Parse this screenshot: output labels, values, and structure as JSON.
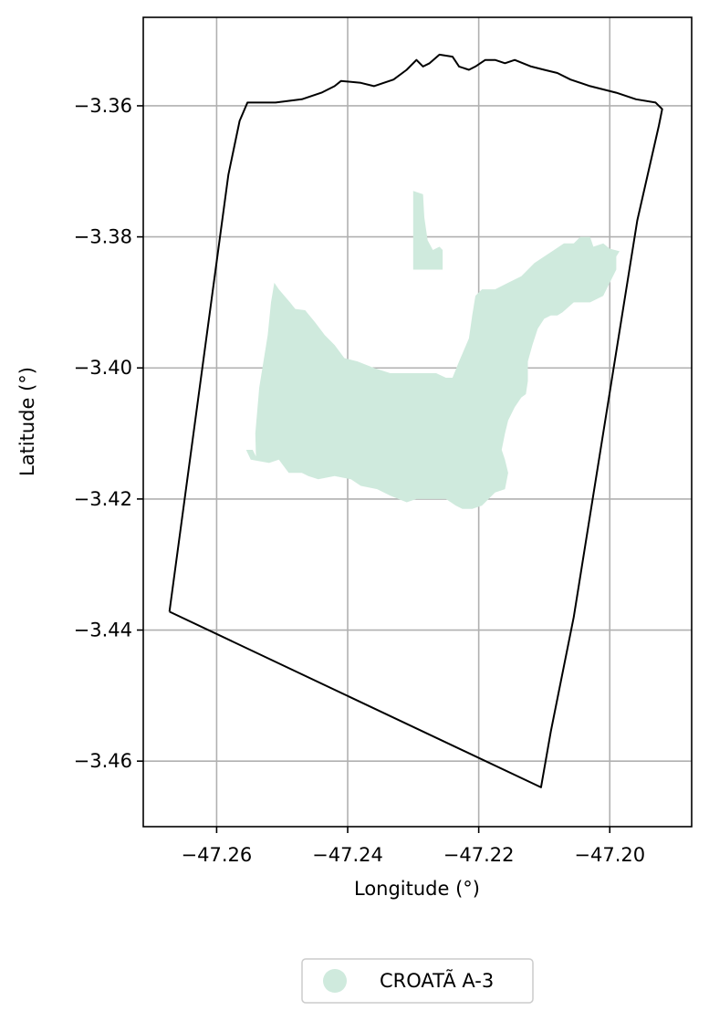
{
  "chart_data": {
    "type": "map",
    "xlabel": "Longitude (°)",
    "ylabel": "Latitude (°)",
    "xlim": [
      -47.2712,
      -47.1875
    ],
    "ylim": [
      -3.47,
      -3.3465
    ],
    "x_ticks": [
      {
        "value": -47.26,
        "label": "−47.26"
      },
      {
        "value": -47.24,
        "label": "−47.24"
      },
      {
        "value": -47.22,
        "label": "−47.22"
      },
      {
        "value": -47.2,
        "label": "−47.20"
      }
    ],
    "y_ticks": [
      {
        "value": -3.36,
        "label": "−3.36"
      },
      {
        "value": -3.38,
        "label": "−3.38"
      },
      {
        "value": -3.4,
        "label": "−3.40"
      },
      {
        "value": -3.42,
        "label": "−3.42"
      },
      {
        "value": -3.44,
        "label": "−3.44"
      },
      {
        "value": -3.46,
        "label": "−3.46"
      }
    ],
    "grid": true,
    "legend_position": "bottom-center",
    "boundary": {
      "color": "#000000",
      "coords": [
        [
          -47.2672,
          -3.4372
        ],
        [
          -47.2582,
          -3.3705
        ],
        [
          -47.2565,
          -3.3623
        ],
        [
          -47.2553,
          -3.3595
        ],
        [
          -47.251,
          -3.3595
        ],
        [
          -47.247,
          -3.359
        ],
        [
          -47.244,
          -3.358
        ],
        [
          -47.242,
          -3.357
        ],
        [
          -47.241,
          -3.3562
        ],
        [
          -47.238,
          -3.3565
        ],
        [
          -47.236,
          -3.357
        ],
        [
          -47.233,
          -3.356
        ],
        [
          -47.231,
          -3.3545
        ],
        [
          -47.2295,
          -3.353
        ],
        [
          -47.2285,
          -3.354
        ],
        [
          -47.2275,
          -3.3535
        ],
        [
          -47.226,
          -3.3522
        ],
        [
          -47.224,
          -3.3525
        ],
        [
          -47.223,
          -3.354
        ],
        [
          -47.2215,
          -3.3545
        ],
        [
          -47.2205,
          -3.354
        ],
        [
          -47.219,
          -3.353
        ],
        [
          -47.2175,
          -3.353
        ],
        [
          -47.216,
          -3.3535
        ],
        [
          -47.2145,
          -3.353
        ],
        [
          -47.212,
          -3.354
        ],
        [
          -47.21,
          -3.3545
        ],
        [
          -47.208,
          -3.355
        ],
        [
          -47.206,
          -3.356
        ],
        [
          -47.203,
          -3.357
        ],
        [
          -47.199,
          -3.358
        ],
        [
          -47.196,
          -3.359
        ],
        [
          -47.193,
          -3.3595
        ],
        [
          -47.192,
          -3.3605
        ],
        [
          -47.1925,
          -3.363
        ],
        [
          -47.1958,
          -3.3775
        ],
        [
          -47.2055,
          -3.438
        ],
        [
          -47.209,
          -3.4555
        ],
        [
          -47.2105,
          -3.464
        ],
        [
          -47.2672,
          -3.4372
        ]
      ]
    },
    "series": [
      {
        "name": "CROATÃ A-3",
        "color": "#cfeadd",
        "polygons": [
          [
            [
              -47.23,
              -3.373
            ],
            [
              -47.2285,
              -3.3735
            ],
            [
              -47.2283,
              -3.377
            ],
            [
              -47.2278,
              -3.3805
            ],
            [
              -47.227,
              -3.382
            ],
            [
              -47.226,
              -3.3815
            ],
            [
              -47.2255,
              -3.382
            ],
            [
              -47.2255,
              -3.385
            ],
            [
              -47.23,
              -3.385
            ]
          ],
          [
            [
              -47.224,
              -3.4015
            ],
            [
              -47.225,
              -3.4015
            ],
            [
              -47.2265,
              -3.4008
            ],
            [
              -47.23,
              -3.4008
            ],
            [
              -47.2335,
              -3.4008
            ],
            [
              -47.236,
              -3.4
            ],
            [
              -47.2385,
              -3.399
            ],
            [
              -47.2405,
              -3.3985
            ],
            [
              -47.242,
              -3.3965
            ],
            [
              -47.2435,
              -3.395
            ],
            [
              -47.245,
              -3.393
            ],
            [
              -47.2465,
              -3.3912
            ],
            [
              -47.248,
              -3.391
            ],
            [
              -47.2488,
              -3.39
            ],
            [
              -47.2505,
              -3.388
            ],
            [
              -47.2512,
              -3.387
            ],
            [
              -47.2517,
              -3.39
            ],
            [
              -47.2522,
              -3.395
            ],
            [
              -47.2535,
              -3.403
            ],
            [
              -47.2541,
              -3.41
            ],
            [
              -47.254,
              -3.4135
            ],
            [
              -47.2545,
              -3.4125
            ],
            [
              -47.2555,
              -3.4125
            ],
            [
              -47.2548,
              -3.414
            ],
            [
              -47.252,
              -3.4145
            ],
            [
              -47.2505,
              -3.414
            ],
            [
              -47.249,
              -3.416
            ],
            [
              -47.247,
              -3.416
            ],
            [
              -47.246,
              -3.4165
            ],
            [
              -47.2445,
              -3.417
            ],
            [
              -47.242,
              -3.4165
            ],
            [
              -47.2395,
              -3.417
            ],
            [
              -47.238,
              -3.418
            ],
            [
              -47.2355,
              -3.4185
            ],
            [
              -47.2335,
              -3.4195
            ],
            [
              -47.231,
              -3.4205
            ],
            [
              -47.2295,
              -3.42
            ],
            [
              -47.227,
              -3.42
            ],
            [
              -47.225,
              -3.42
            ],
            [
              -47.2235,
              -3.421
            ],
            [
              -47.2225,
              -3.4215
            ],
            [
              -47.221,
              -3.4215
            ],
            [
              -47.2195,
              -3.421
            ],
            [
              -47.2185,
              -3.42
            ],
            [
              -47.2175,
              -3.419
            ],
            [
              -47.216,
              -3.4185
            ],
            [
              -47.2155,
              -3.416
            ],
            [
              -47.216,
              -3.414
            ],
            [
              -47.2165,
              -3.4125
            ],
            [
              -47.216,
              -3.41
            ],
            [
              -47.2155,
              -3.408
            ],
            [
              -47.2145,
              -3.406
            ],
            [
              -47.2135,
              -3.4045
            ],
            [
              -47.2128,
              -3.404
            ],
            [
              -47.2125,
              -3.402
            ],
            [
              -47.2125,
              -3.399
            ],
            [
              -47.2118,
              -3.3965
            ],
            [
              -47.211,
              -3.394
            ],
            [
              -47.21,
              -3.3925
            ],
            [
              -47.209,
              -3.392
            ],
            [
              -47.208,
              -3.392
            ],
            [
              -47.2072,
              -3.3915
            ],
            [
              -47.2055,
              -3.39
            ],
            [
              -47.203,
              -3.39
            ],
            [
              -47.201,
              -3.389
            ],
            [
              -47.2,
              -3.387
            ],
            [
              -47.199,
              -3.385
            ],
            [
              -47.199,
              -3.383
            ],
            [
              -47.1985,
              -3.3822
            ],
            [
              -47.2,
              -3.3818
            ],
            [
              -47.201,
              -3.381
            ],
            [
              -47.2025,
              -3.3815
            ],
            [
              -47.203,
              -3.38
            ],
            [
              -47.2045,
              -3.38
            ],
            [
              -47.2055,
              -3.381
            ],
            [
              -47.207,
              -3.381
            ],
            [
              -47.2085,
              -3.382
            ],
            [
              -47.21,
              -3.383
            ],
            [
              -47.2115,
              -3.384
            ],
            [
              -47.2135,
              -3.386
            ],
            [
              -47.2155,
              -3.387
            ],
            [
              -47.2175,
              -3.388
            ],
            [
              -47.2195,
              -3.388
            ],
            [
              -47.2205,
              -3.389
            ],
            [
              -47.221,
              -3.392
            ],
            [
              -47.2215,
              -3.3955
            ],
            [
              -47.223,
              -3.399
            ]
          ]
        ]
      }
    ]
  }
}
